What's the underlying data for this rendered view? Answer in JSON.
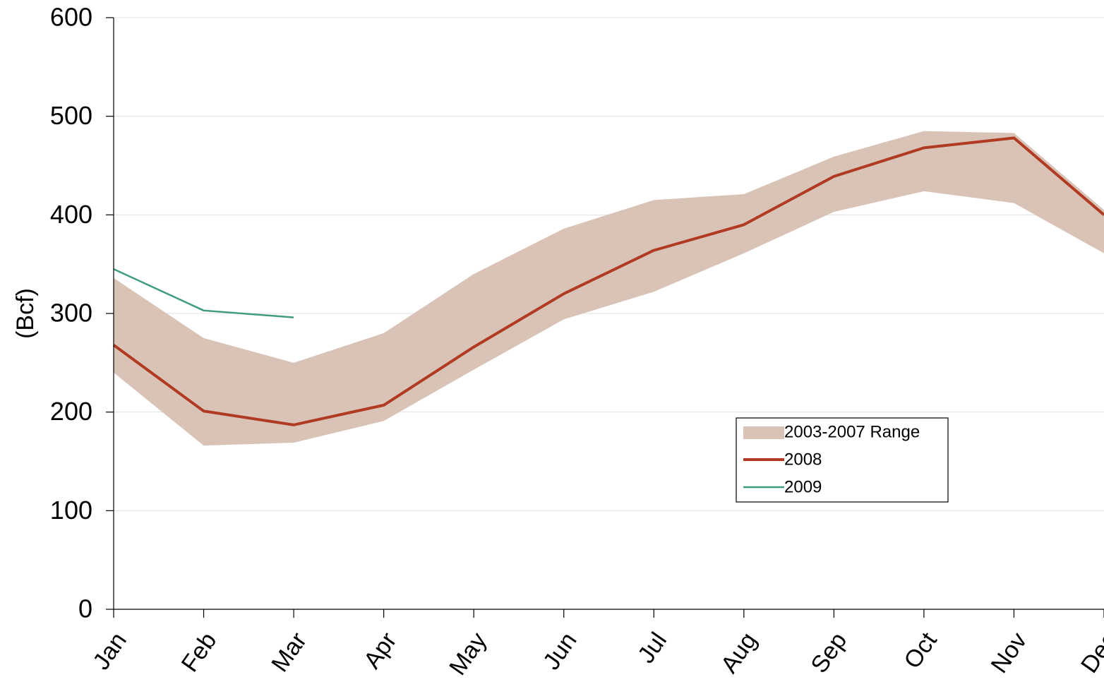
{
  "chart_data": {
    "type": "line",
    "y_label": "(Bcf)",
    "categories": [
      "Jan",
      "Feb",
      "Mar",
      "Apr",
      "May",
      "Jun",
      "Jul",
      "Aug",
      "Sep",
      "Oct",
      "Nov",
      "Dec"
    ],
    "range": {
      "name": "2003-2007 Range",
      "color": "#d9c3b6",
      "upper": [
        336,
        275,
        250,
        280,
        340,
        386,
        415,
        421,
        459,
        485,
        483,
        405
      ],
      "lower": [
        240,
        166,
        169,
        191,
        243,
        294,
        322,
        361,
        403,
        424,
        412,
        361
      ]
    },
    "series": [
      {
        "name": "2008",
        "color": "#b03a22",
        "width": 4,
        "values": [
          268,
          201,
          187,
          207,
          266,
          320,
          364,
          390,
          439,
          468,
          478,
          400
        ]
      },
      {
        "name": "2009",
        "color": "#3f9b82",
        "width": 2.5,
        "values": [
          345,
          303,
          296,
          null,
          null,
          null,
          null,
          null,
          null,
          null,
          null,
          null
        ]
      }
    ],
    "ylim": [
      0,
      600
    ],
    "yticks": [
      0,
      100,
      200,
      300,
      400,
      500,
      600
    ],
    "grid": true,
    "legend": "right"
  }
}
